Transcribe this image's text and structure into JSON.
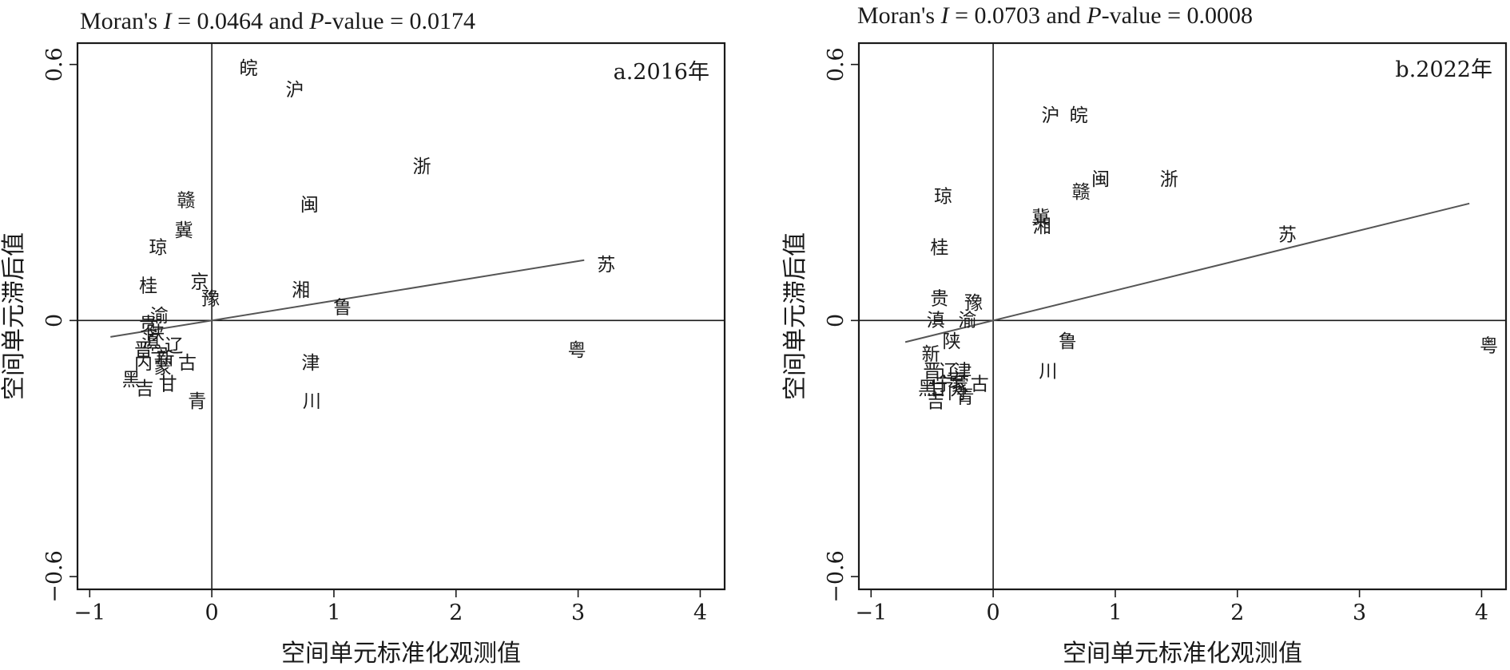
{
  "chart_data": [
    {
      "type": "scatter",
      "stats": {
        "prefix": "Moran's ",
        "i_symbol": "I",
        "mid": " = 0.0464 and ",
        "p_symbol": "P",
        "suffix": "-value = 0.0174"
      },
      "moran_i": 0.0464,
      "p_value": 0.0174,
      "panel_label": "a.2016年",
      "xlabel": "空间单元标准化观测值",
      "ylabel": "空间单元滞后值",
      "xlim": [
        -1.1,
        4.2
      ],
      "ylim": [
        -0.63,
        0.65
      ],
      "xticks": [
        -1,
        0,
        1,
        2,
        3,
        4
      ],
      "xtick_labels": [
        "−1",
        "0",
        "1",
        "2",
        "3",
        "4"
      ],
      "yticks": [
        -0.6,
        0,
        0.6
      ],
      "ytick_labels": [
        "−0.6",
        "0",
        "0.6"
      ],
      "fit_line": {
        "slope": 0.0464,
        "x_range": [
          -0.83,
          3.05
        ]
      },
      "points": [
        {
          "label": "皖",
          "x": 0.3,
          "y": 0.59
        },
        {
          "label": "沪",
          "x": 0.68,
          "y": 0.54
        },
        {
          "label": "浙",
          "x": 1.72,
          "y": 0.36
        },
        {
          "label": "闽",
          "x": 0.8,
          "y": 0.27
        },
        {
          "label": "赣",
          "x": -0.21,
          "y": 0.28
        },
        {
          "label": "冀",
          "x": -0.23,
          "y": 0.21
        },
        {
          "label": "琼",
          "x": -0.44,
          "y": 0.17
        },
        {
          "label": "苏",
          "x": 3.23,
          "y": 0.13
        },
        {
          "label": "京",
          "x": -0.1,
          "y": 0.09
        },
        {
          "label": "桂",
          "x": -0.52,
          "y": 0.08
        },
        {
          "label": "湘",
          "x": 0.73,
          "y": 0.07
        },
        {
          "label": "豫",
          "x": -0.01,
          "y": 0.05
        },
        {
          "label": "鲁",
          "x": 1.07,
          "y": 0.03
        },
        {
          "label": "渝",
          "x": -0.43,
          "y": 0.01
        },
        {
          "label": "贵",
          "x": -0.52,
          "y": -0.01
        },
        {
          "label": "陕",
          "x": -0.46,
          "y": -0.03
        },
        {
          "label": "滇",
          "x": -0.5,
          "y": -0.05
        },
        {
          "label": "辽",
          "x": -0.31,
          "y": -0.06
        },
        {
          "label": "晋",
          "x": -0.56,
          "y": -0.07
        },
        {
          "label": "宁",
          "x": -0.43,
          "y": -0.08
        },
        {
          "label": "新",
          "x": -0.38,
          "y": -0.09
        },
        {
          "label": "粤",
          "x": 2.99,
          "y": -0.07
        },
        {
          "label": "内",
          "x": -0.56,
          "y": -0.1
        },
        {
          "label": "蒙",
          "x": -0.4,
          "y": -0.11
        },
        {
          "label": "古",
          "x": -0.2,
          "y": -0.1
        },
        {
          "label": "津",
          "x": 0.81,
          "y": -0.1
        },
        {
          "label": "黑",
          "x": -0.66,
          "y": -0.14
        },
        {
          "label": "吉",
          "x": -0.55,
          "y": -0.16
        },
        {
          "label": "甘",
          "x": -0.36,
          "y": -0.15
        },
        {
          "label": "青",
          "x": -0.12,
          "y": -0.19
        },
        {
          "label": "川",
          "x": 0.82,
          "y": -0.19
        }
      ]
    },
    {
      "type": "scatter",
      "stats": {
        "prefix": "Moran's ",
        "i_symbol": "I",
        "mid": " = 0.0703 and ",
        "p_symbol": "P",
        "suffix": "-value = 0.0008"
      },
      "moran_i": 0.0703,
      "p_value": 0.0008,
      "panel_label": "b.2022年",
      "xlabel": "空间单元标准化观测值",
      "ylabel": "空间单元滞后值",
      "xlim": [
        -1.1,
        4.2
      ],
      "ylim": [
        -0.63,
        0.65
      ],
      "xticks": [
        -1,
        0,
        1,
        2,
        3,
        4
      ],
      "xtick_labels": [
        "−1",
        "0",
        "1",
        "2",
        "3",
        "4"
      ],
      "yticks": [
        -0.6,
        0,
        0.6
      ],
      "ytick_labels": [
        "−0.6",
        "0",
        "0.6"
      ],
      "fit_line": {
        "slope": 0.0703,
        "x_range": [
          -0.72,
          3.9
        ]
      },
      "points": [
        {
          "label": "沪",
          "x": 0.47,
          "y": 0.48
        },
        {
          "label": "皖",
          "x": 0.7,
          "y": 0.48
        },
        {
          "label": "闽",
          "x": 0.88,
          "y": 0.33
        },
        {
          "label": "浙",
          "x": 1.44,
          "y": 0.33
        },
        {
          "label": "赣",
          "x": 0.72,
          "y": 0.3
        },
        {
          "label": "琼",
          "x": -0.41,
          "y": 0.29
        },
        {
          "label": "冀",
          "x": 0.39,
          "y": 0.24
        },
        {
          "label": "湘",
          "x": 0.4,
          "y": 0.22
        },
        {
          "label": "苏",
          "x": 2.41,
          "y": 0.2
        },
        {
          "label": "桂",
          "x": -0.44,
          "y": 0.17
        },
        {
          "label": "贵",
          "x": -0.44,
          "y": 0.05
        },
        {
          "label": "豫",
          "x": -0.16,
          "y": 0.04
        },
        {
          "label": "渝",
          "x": -0.21,
          "y": 0.0
        },
        {
          "label": "滇",
          "x": -0.47,
          "y": 0.0
        },
        {
          "label": "陕",
          "x": -0.34,
          "y": -0.05
        },
        {
          "label": "鲁",
          "x": 0.61,
          "y": -0.05
        },
        {
          "label": "粤",
          "x": 4.06,
          "y": -0.06
        },
        {
          "label": "新",
          "x": -0.51,
          "y": -0.08
        },
        {
          "label": "川",
          "x": 0.45,
          "y": -0.12
        },
        {
          "label": "晋",
          "x": -0.5,
          "y": -0.12
        },
        {
          "label": "辽",
          "x": -0.37,
          "y": -0.12
        },
        {
          "label": "津",
          "x": -0.25,
          "y": -0.12
        },
        {
          "label": "京",
          "x": -0.3,
          "y": -0.14
        },
        {
          "label": "宁",
          "x": -0.4,
          "y": -0.15
        },
        {
          "label": "蒙",
          "x": -0.27,
          "y": -0.15
        },
        {
          "label": "古",
          "x": -0.11,
          "y": -0.15
        },
        {
          "label": "黑",
          "x": -0.54,
          "y": -0.16
        },
        {
          "label": "甘",
          "x": -0.45,
          "y": -0.16
        },
        {
          "label": "吉",
          "x": -0.47,
          "y": -0.19
        },
        {
          "label": "青",
          "x": -0.23,
          "y": -0.18
        },
        {
          "label": "内",
          "x": -0.3,
          "y": -0.17
        }
      ]
    }
  ]
}
